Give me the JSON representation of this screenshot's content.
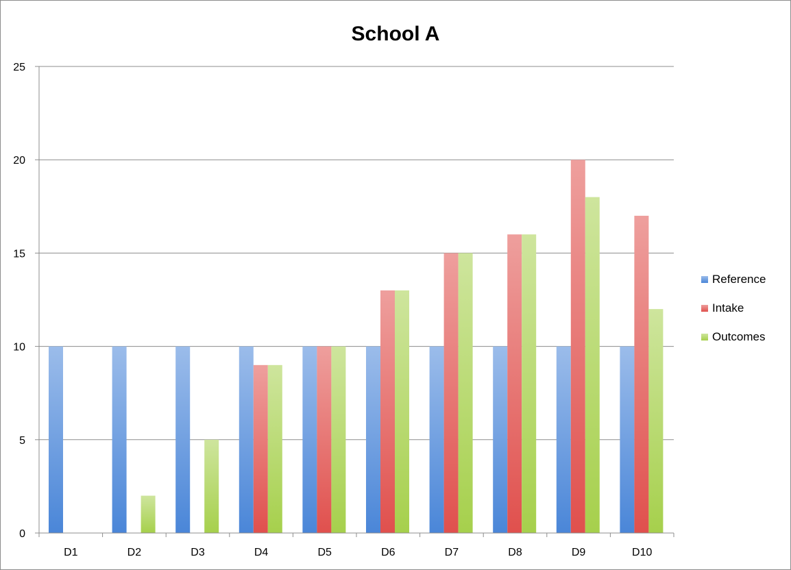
{
  "chart_data": {
    "type": "bar",
    "title": "School A",
    "xlabel": "",
    "ylabel": "",
    "categories": [
      "D1",
      "D2",
      "D3",
      "D4",
      "D5",
      "D6",
      "D7",
      "D8",
      "D9",
      "D10"
    ],
    "series": [
      {
        "name": "Reference",
        "color": "#4a86d8",
        "values": [
          10,
          10,
          10,
          10,
          10,
          10,
          10,
          10,
          10,
          10
        ]
      },
      {
        "name": "Intake",
        "color": "#e0504d",
        "values": [
          0,
          0,
          0,
          9,
          10,
          13,
          15,
          16,
          20,
          17
        ]
      },
      {
        "name": "Outcomes",
        "color": "#a6d04c",
        "values": [
          0,
          2,
          5,
          9,
          10,
          13,
          15,
          16,
          18,
          12
        ]
      }
    ],
    "ylim": [
      0,
      25
    ],
    "yticks": [
      0,
      5,
      10,
      15,
      20,
      25
    ],
    "grid": true,
    "legend_position": "right"
  }
}
